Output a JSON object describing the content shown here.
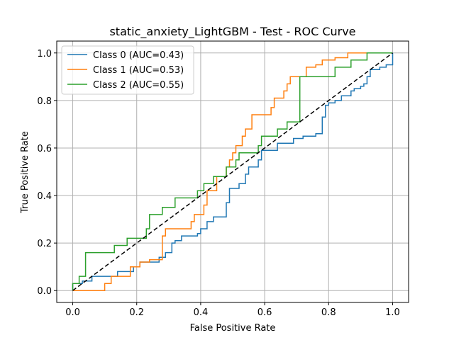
{
  "chart_data": {
    "type": "line",
    "title": "static_anxiety_LightGBM - Test - ROC Curve",
    "xlabel": "False Positive Rate",
    "ylabel": "True Positive Rate",
    "xlim": [
      -0.05,
      1.05
    ],
    "ylim": [
      -0.05,
      1.05
    ],
    "xticks": [
      "0.0",
      "0.2",
      "0.4",
      "0.6",
      "0.8",
      "1.0"
    ],
    "yticks": [
      "0.0",
      "0.2",
      "0.4",
      "0.6",
      "0.8",
      "1.0"
    ],
    "grid": true,
    "legend_position": "upper-left",
    "series": [
      {
        "name": "Class 0 (AUC=0.43)",
        "color": "#1f77b4",
        "x": [
          0.0,
          0.0,
          0.03,
          0.03,
          0.06,
          0.06,
          0.14,
          0.14,
          0.19,
          0.19,
          0.21,
          0.21,
          0.27,
          0.27,
          0.29,
          0.29,
          0.31,
          0.31,
          0.32,
          0.32,
          0.34,
          0.34,
          0.39,
          0.39,
          0.4,
          0.4,
          0.42,
          0.42,
          0.44,
          0.44,
          0.48,
          0.48,
          0.49,
          0.49,
          0.52,
          0.52,
          0.54,
          0.54,
          0.55,
          0.55,
          0.58,
          0.58,
          0.59,
          0.59,
          0.64,
          0.64,
          0.69,
          0.69,
          0.72,
          0.72,
          0.76,
          0.76,
          0.78,
          0.78,
          0.79,
          0.79,
          0.8,
          0.8,
          0.82,
          0.82,
          0.84,
          0.84,
          0.87,
          0.87,
          0.88,
          0.88,
          0.9,
          0.9,
          0.91,
          0.91,
          0.92,
          0.92,
          0.93,
          0.93,
          0.96,
          0.96,
          0.98,
          0.98,
          1.0,
          1.0
        ],
        "y": [
          0.0,
          0.03,
          0.03,
          0.04,
          0.04,
          0.06,
          0.06,
          0.08,
          0.08,
          0.1,
          0.1,
          0.12,
          0.12,
          0.14,
          0.14,
          0.16,
          0.16,
          0.2,
          0.2,
          0.21,
          0.21,
          0.23,
          0.23,
          0.24,
          0.24,
          0.26,
          0.26,
          0.29,
          0.29,
          0.31,
          0.31,
          0.37,
          0.37,
          0.43,
          0.43,
          0.45,
          0.45,
          0.49,
          0.49,
          0.52,
          0.52,
          0.55,
          0.55,
          0.59,
          0.59,
          0.62,
          0.62,
          0.64,
          0.64,
          0.65,
          0.65,
          0.66,
          0.66,
          0.73,
          0.73,
          0.78,
          0.78,
          0.79,
          0.79,
          0.8,
          0.8,
          0.82,
          0.82,
          0.84,
          0.84,
          0.85,
          0.85,
          0.86,
          0.86,
          0.87,
          0.87,
          0.9,
          0.9,
          0.93,
          0.93,
          0.94,
          0.94,
          0.95,
          0.95,
          1.0
        ]
      },
      {
        "name": "Class 1 (AUC=0.53)",
        "color": "#ff7f0e",
        "x": [
          0.0,
          0.03,
          0.03,
          0.1,
          0.1,
          0.12,
          0.12,
          0.18,
          0.18,
          0.21,
          0.21,
          0.24,
          0.24,
          0.28,
          0.28,
          0.29,
          0.29,
          0.37,
          0.37,
          0.38,
          0.38,
          0.41,
          0.41,
          0.42,
          0.42,
          0.45,
          0.45,
          0.48,
          0.48,
          0.49,
          0.49,
          0.5,
          0.5,
          0.51,
          0.51,
          0.53,
          0.53,
          0.54,
          0.54,
          0.56,
          0.56,
          0.62,
          0.62,
          0.63,
          0.63,
          0.66,
          0.66,
          0.67,
          0.67,
          0.68,
          0.68,
          0.73,
          0.73,
          0.76,
          0.76,
          0.78,
          0.78,
          0.82,
          0.82,
          0.86,
          0.86,
          1.0
        ],
        "y": [
          0.0,
          0.0,
          0.0,
          0.0,
          0.03,
          0.03,
          0.06,
          0.06,
          0.1,
          0.1,
          0.12,
          0.12,
          0.13,
          0.13,
          0.23,
          0.23,
          0.26,
          0.26,
          0.29,
          0.29,
          0.32,
          0.32,
          0.36,
          0.36,
          0.42,
          0.42,
          0.48,
          0.48,
          0.52,
          0.52,
          0.55,
          0.55,
          0.58,
          0.58,
          0.61,
          0.61,
          0.65,
          0.65,
          0.68,
          0.68,
          0.74,
          0.74,
          0.77,
          0.77,
          0.81,
          0.81,
          0.84,
          0.84,
          0.87,
          0.87,
          0.9,
          0.9,
          0.94,
          0.94,
          0.95,
          0.95,
          0.97,
          0.97,
          0.98,
          0.98,
          1.0,
          1.0
        ]
      },
      {
        "name": "Class 2 (AUC=0.55)",
        "color": "#2ca02c",
        "x": [
          0.0,
          0.0,
          0.02,
          0.02,
          0.04,
          0.04,
          0.13,
          0.13,
          0.17,
          0.17,
          0.23,
          0.23,
          0.24,
          0.24,
          0.28,
          0.28,
          0.32,
          0.32,
          0.39,
          0.39,
          0.41,
          0.41,
          0.44,
          0.44,
          0.48,
          0.48,
          0.51,
          0.51,
          0.52,
          0.52,
          0.58,
          0.58,
          0.59,
          0.59,
          0.64,
          0.64,
          0.67,
          0.67,
          0.71,
          0.71,
          0.82,
          0.82,
          0.87,
          0.87,
          0.92,
          0.92,
          1.0
        ],
        "y": [
          0.0,
          0.03,
          0.03,
          0.06,
          0.06,
          0.16,
          0.16,
          0.19,
          0.19,
          0.22,
          0.22,
          0.26,
          0.26,
          0.32,
          0.32,
          0.35,
          0.35,
          0.39,
          0.39,
          0.42,
          0.42,
          0.45,
          0.45,
          0.48,
          0.48,
          0.52,
          0.52,
          0.55,
          0.55,
          0.58,
          0.58,
          0.61,
          0.61,
          0.65,
          0.65,
          0.68,
          0.68,
          0.71,
          0.71,
          0.9,
          0.9,
          0.94,
          0.94,
          0.97,
          0.97,
          1.0,
          1.0
        ]
      }
    ],
    "reference_line": {
      "style": "dashed",
      "color": "#000000",
      "x": [
        0.0,
        1.0
      ],
      "y": [
        0.0,
        1.0
      ]
    }
  }
}
